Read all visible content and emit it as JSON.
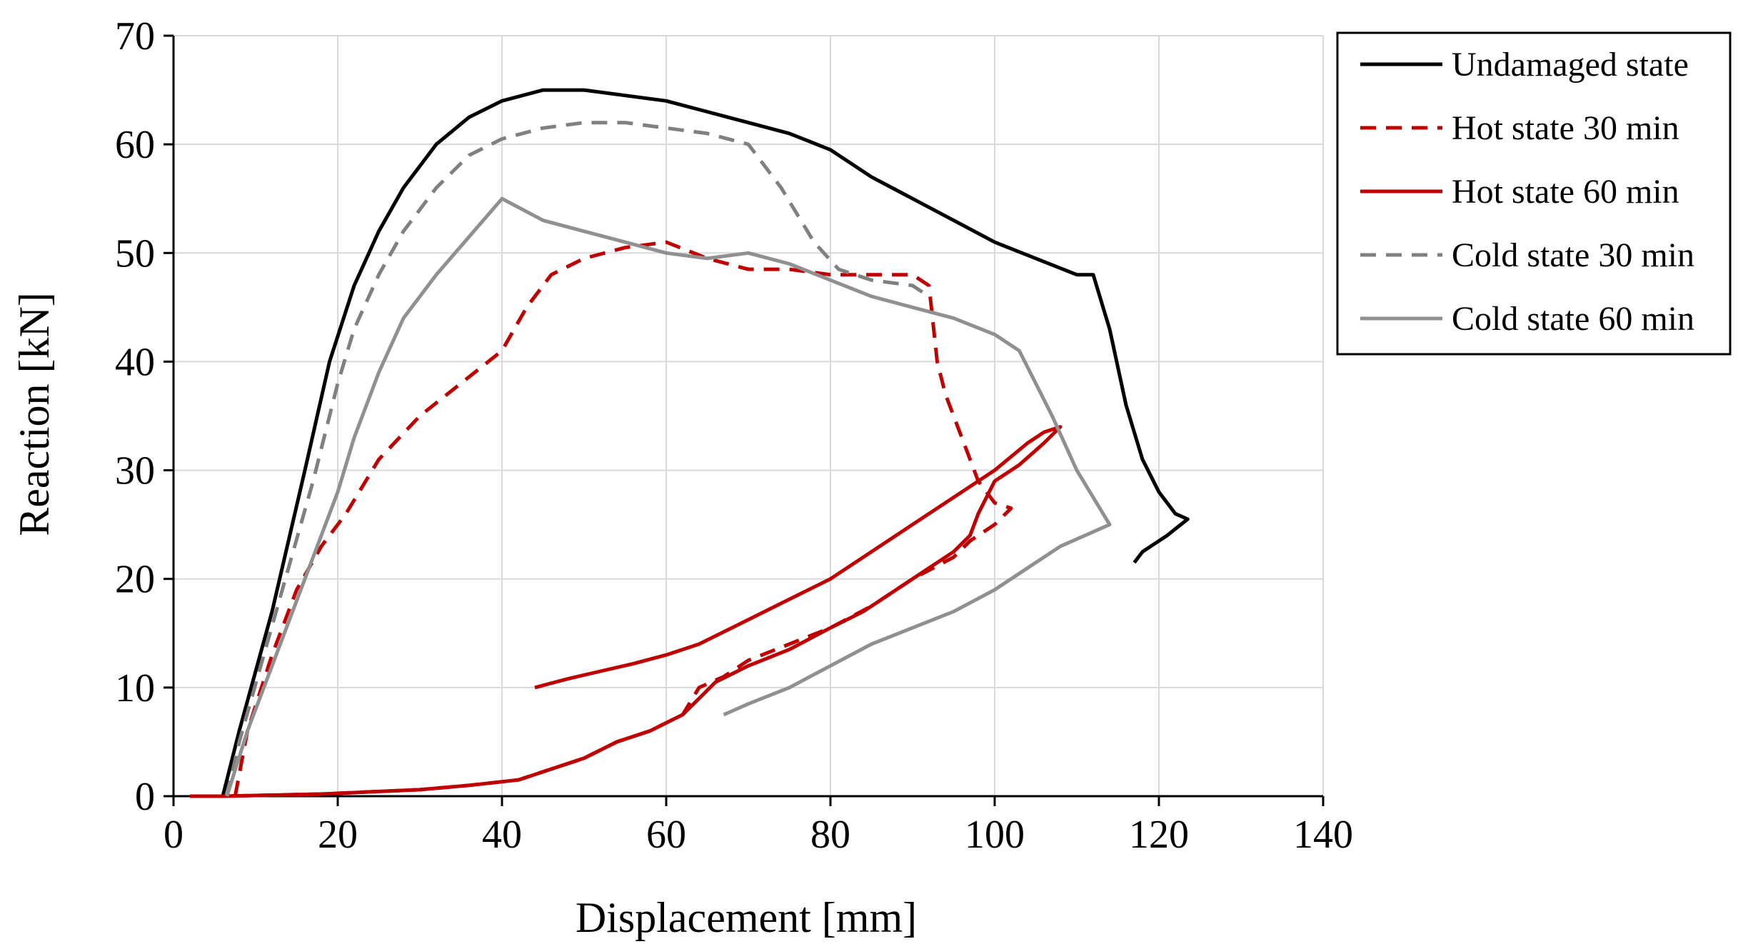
{
  "chart_data": {
    "type": "line",
    "title": "",
    "xlabel": "Displacement  [mm]",
    "ylabel": "Reaction  [kN]",
    "xlim": [
      0,
      140
    ],
    "ylim": [
      0,
      70
    ],
    "xticks": [
      0,
      20,
      40,
      60,
      80,
      100,
      120,
      140
    ],
    "yticks": [
      0,
      10,
      20,
      30,
      40,
      50,
      60,
      70
    ],
    "grid": true,
    "legend_position": "right-top-outside",
    "series": [
      {
        "name": "Undamaged state",
        "color": "#000000",
        "dash": "solid",
        "points": [
          [
            6,
            0
          ],
          [
            8,
            6
          ],
          [
            12,
            17
          ],
          [
            16,
            30
          ],
          [
            19,
            40
          ],
          [
            22,
            47
          ],
          [
            25,
            52
          ],
          [
            28,
            56
          ],
          [
            32,
            60
          ],
          [
            36,
            62.5
          ],
          [
            40,
            64
          ],
          [
            45,
            65
          ],
          [
            50,
            65
          ],
          [
            55,
            64.5
          ],
          [
            60,
            64
          ],
          [
            65,
            63
          ],
          [
            70,
            62
          ],
          [
            75,
            61
          ],
          [
            80,
            59.5
          ],
          [
            85,
            57
          ],
          [
            90,
            55
          ],
          [
            95,
            53
          ],
          [
            100,
            51
          ],
          [
            105,
            49.5
          ],
          [
            110,
            48
          ],
          [
            112,
            48
          ],
          [
            114,
            43
          ],
          [
            116,
            36
          ],
          [
            118,
            31
          ],
          [
            120,
            28
          ],
          [
            122,
            26
          ],
          [
            123.5,
            25.5
          ],
          [
            121,
            24
          ],
          [
            118,
            22.5
          ],
          [
            117,
            21.5
          ]
        ]
      },
      {
        "name": "Hot state 30 min",
        "color": "#C00000",
        "dash": "dashed",
        "points": [
          [
            7.5,
            0
          ],
          [
            9,
            6
          ],
          [
            12,
            13
          ],
          [
            15,
            19
          ],
          [
            18,
            23
          ],
          [
            21,
            26
          ],
          [
            25,
            31
          ],
          [
            30,
            35
          ],
          [
            35,
            38
          ],
          [
            40,
            41
          ],
          [
            43,
            45
          ],
          [
            46,
            48
          ],
          [
            50,
            49.5
          ],
          [
            55,
            50.5
          ],
          [
            60,
            51
          ],
          [
            65,
            49.5
          ],
          [
            70,
            48.5
          ],
          [
            75,
            48.5
          ],
          [
            80,
            48
          ],
          [
            85,
            48
          ],
          [
            90,
            48
          ],
          [
            92,
            47
          ],
          [
            93,
            40
          ],
          [
            94,
            37
          ],
          [
            96,
            33
          ],
          [
            98,
            29
          ],
          [
            100,
            27
          ],
          [
            102,
            26.5
          ],
          [
            100,
            25
          ],
          [
            97,
            23.5
          ],
          [
            95,
            22
          ],
          [
            90,
            20
          ],
          [
            85,
            17.5
          ],
          [
            80,
            15.5
          ],
          [
            75,
            14
          ],
          [
            70,
            12.5
          ],
          [
            67,
            11
          ],
          [
            64,
            10
          ],
          [
            62,
            7.5
          ],
          [
            58,
            6
          ],
          [
            54,
            5
          ],
          [
            50,
            3.5
          ],
          [
            46,
            2.5
          ],
          [
            42,
            1.5
          ],
          [
            36,
            1
          ],
          [
            30,
            0.6
          ],
          [
            24,
            0.4
          ],
          [
            18,
            0.2
          ],
          [
            12,
            0.1
          ],
          [
            6,
            0
          ],
          [
            2,
            0
          ]
        ]
      },
      {
        "name": "Hot state 60 min",
        "color": "#C00000",
        "dash": "solid",
        "points": [
          [
            44,
            10
          ],
          [
            48,
            10.8
          ],
          [
            52,
            11.5
          ],
          [
            56,
            12.2
          ],
          [
            60,
            13
          ],
          [
            64,
            14
          ],
          [
            68,
            15.5
          ],
          [
            72,
            17
          ],
          [
            76,
            18.5
          ],
          [
            80,
            20
          ],
          [
            85,
            22.5
          ],
          [
            90,
            25
          ],
          [
            95,
            27.5
          ],
          [
            100,
            30
          ],
          [
            104,
            32.5
          ],
          [
            106,
            33.5
          ],
          [
            108,
            34
          ],
          [
            106,
            32.5
          ],
          [
            103,
            30.5
          ],
          [
            100,
            29
          ],
          [
            98,
            26
          ],
          [
            97,
            24
          ],
          [
            95,
            22.5
          ],
          [
            92,
            21
          ],
          [
            88,
            19
          ],
          [
            84,
            17
          ],
          [
            80,
            15.5
          ],
          [
            75,
            13.5
          ],
          [
            70,
            12
          ],
          [
            66,
            10.5
          ],
          [
            64,
            9
          ],
          [
            62,
            7.5
          ],
          [
            58,
            6
          ],
          [
            54,
            5
          ],
          [
            50,
            3.5
          ],
          [
            46,
            2.5
          ],
          [
            42,
            1.5
          ],
          [
            36,
            1
          ],
          [
            30,
            0.6
          ],
          [
            24,
            0.4
          ],
          [
            18,
            0.2
          ],
          [
            12,
            0.1
          ],
          [
            6,
            0
          ],
          [
            2,
            0
          ]
        ]
      },
      {
        "name": "Cold state 30 min",
        "color": "#808080",
        "dash": "dashed",
        "points": [
          [
            6.5,
            0
          ],
          [
            8,
            5
          ],
          [
            11,
            13
          ],
          [
            14,
            21
          ],
          [
            17,
            29
          ],
          [
            20,
            38
          ],
          [
            22,
            43
          ],
          [
            25,
            48
          ],
          [
            28,
            52
          ],
          [
            32,
            56
          ],
          [
            36,
            59
          ],
          [
            40,
            60.5
          ],
          [
            45,
            61.5
          ],
          [
            50,
            62
          ],
          [
            55,
            62
          ],
          [
            60,
            61.5
          ],
          [
            65,
            61
          ],
          [
            70,
            60
          ],
          [
            74,
            56
          ],
          [
            78,
            51
          ],
          [
            81,
            48.5
          ],
          [
            85,
            47.5
          ],
          [
            90,
            47
          ],
          [
            92,
            46
          ]
        ]
      },
      {
        "name": "Cold state 60 min",
        "color": "#909090",
        "dash": "solid",
        "points": [
          [
            6.5,
            0
          ],
          [
            9,
            6
          ],
          [
            12,
            12
          ],
          [
            15,
            18
          ],
          [
            18,
            24
          ],
          [
            20,
            28
          ],
          [
            22,
            33
          ],
          [
            25,
            39
          ],
          [
            28,
            44
          ],
          [
            32,
            48
          ],
          [
            36,
            51.5
          ],
          [
            40,
            55
          ],
          [
            45,
            53
          ],
          [
            50,
            52
          ],
          [
            55,
            51
          ],
          [
            60,
            50
          ],
          [
            65,
            49.5
          ],
          [
            70,
            50
          ],
          [
            75,
            49
          ],
          [
            80,
            47.5
          ],
          [
            85,
            46
          ],
          [
            90,
            45
          ],
          [
            95,
            44
          ],
          [
            100,
            42.5
          ],
          [
            103,
            41
          ],
          [
            105,
            38
          ],
          [
            107,
            35
          ],
          [
            110,
            30
          ],
          [
            112,
            27.5
          ],
          [
            114,
            25
          ],
          [
            111,
            24
          ],
          [
            108,
            23
          ],
          [
            104,
            21
          ],
          [
            100,
            19
          ],
          [
            95,
            17
          ],
          [
            90,
            15.5
          ],
          [
            85,
            14
          ],
          [
            80,
            12
          ],
          [
            75,
            10
          ],
          [
            70,
            8.5
          ],
          [
            67,
            7.5
          ]
        ]
      }
    ]
  }
}
